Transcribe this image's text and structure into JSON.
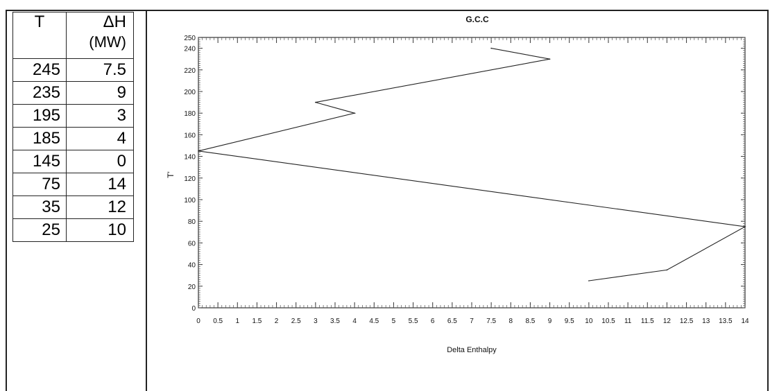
{
  "table": {
    "headers": {
      "t": "T",
      "dh": "ΔH",
      "dh_unit": "(MW)"
    },
    "rows": [
      {
        "t": "245",
        "dh": "7.5"
      },
      {
        "t": "235",
        "dh": "9"
      },
      {
        "t": "195",
        "dh": "3"
      },
      {
        "t": "185",
        "dh": "4"
      },
      {
        "t": "145",
        "dh": "0"
      },
      {
        "t": "75",
        "dh": "14"
      },
      {
        "t": "35",
        "dh": "12"
      },
      {
        "t": "25",
        "dh": "10"
      }
    ]
  },
  "chart_data": {
    "type": "line",
    "title": "G.C.C",
    "xlabel": "Delta Enthalpy",
    "ylabel": "T'",
    "xlim": [
      0,
      14
    ],
    "ylim": [
      0,
      250
    ],
    "x_ticks": [
      "0",
      "0.5",
      "1",
      "1.5",
      "2",
      "2.5",
      "3",
      "3.5",
      "4",
      "4.5",
      "5",
      "5.5",
      "6",
      "6.5",
      "7",
      "7.5",
      "8",
      "8.5",
      "9",
      "9.5",
      "10",
      "10.5",
      "11",
      "11.5",
      "12",
      "12.5",
      "13",
      "13.5",
      "14"
    ],
    "y_ticks": [
      "0",
      "20",
      "40",
      "60",
      "80",
      "100",
      "120",
      "140",
      "160",
      "180",
      "200",
      "220",
      "240",
      "250"
    ],
    "grid": false,
    "series": [
      {
        "points": [
          {
            "x": 7.5,
            "y": 240
          },
          {
            "x": 9,
            "y": 230
          },
          {
            "x": 3,
            "y": 190
          },
          {
            "x": 4,
            "y": 180
          },
          {
            "x": 0,
            "y": 145
          },
          {
            "x": 14,
            "y": 75
          },
          {
            "x": 12,
            "y": 35
          },
          {
            "x": 10,
            "y": 25
          }
        ]
      }
    ],
    "line_color": "#222222"
  }
}
